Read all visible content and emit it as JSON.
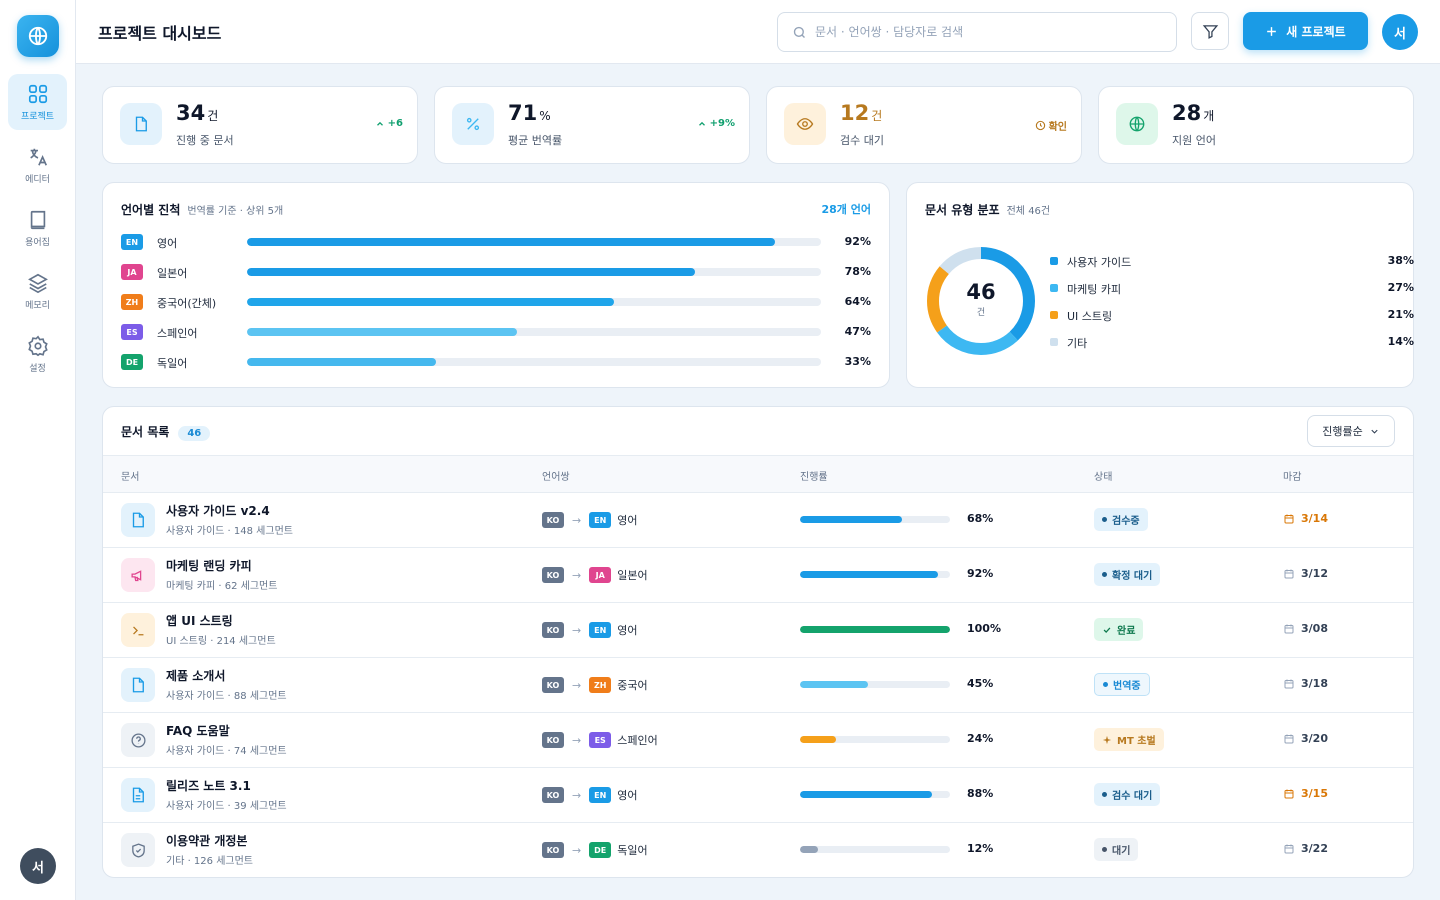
{
  "nav": {
    "items": [
      {
        "label": "프로젝트",
        "icon": "grid-icon"
      },
      {
        "label": "에디터",
        "icon": "translate-icon"
      },
      {
        "label": "용어집",
        "icon": "book-icon"
      },
      {
        "label": "메모리",
        "icon": "layers-icon"
      },
      {
        "label": "설정",
        "icon": "gear-icon"
      }
    ],
    "user_initial": "서"
  },
  "header": {
    "title": "프로젝트 대시보드",
    "search_placeholder": "문서 · 언어쌍 · 담당자로 검색",
    "new_button": "새 프로젝트",
    "user_initial": "서"
  },
  "stats": [
    {
      "value": "34",
      "unit": "건",
      "label": "진행 중 문서",
      "delta": "+6",
      "value_color": "#0f172a",
      "delta_color": "#0f9f6e",
      "icon": "document-icon"
    },
    {
      "value": "71",
      "unit": "%",
      "label": "평균 번역률",
      "delta": "+9%",
      "value_color": "#0f172a",
      "delta_color": "#0f9f6e",
      "icon": "percent-icon"
    },
    {
      "value": "12",
      "unit": "건",
      "label": "검수 대기",
      "delta": "확인",
      "value_color": "#b7791f",
      "delta_color": "#b7791f",
      "icon": "eye-icon"
    },
    {
      "value": "28",
      "unit": "개",
      "label": "지원 언어",
      "delta": "",
      "value_color": "#0f172a",
      "delta_color": "#0f9f6e",
      "icon": "globe-icon"
    }
  ],
  "lang_progress": {
    "title": "언어별 진척",
    "subtitle": "번역률 기준 · 상위 5개",
    "link": "28개 언어",
    "rows": [
      {
        "code": "EN",
        "name": "영어",
        "percent": 92,
        "label": "92%",
        "code_color": "#1a9be6",
        "bar_color": "#1a9be6"
      },
      {
        "code": "JA",
        "name": "일본어",
        "percent": 78,
        "label": "78%",
        "code_color": "#e0458f",
        "bar_color": "#1a9be6"
      },
      {
        "code": "ZH",
        "name": "중국어(간체)",
        "percent": 64,
        "label": "64%",
        "code_color": "#f07d1a",
        "bar_color": "#1fa5ea"
      },
      {
        "code": "ES",
        "name": "스페인어",
        "percent": 47,
        "label": "47%",
        "code_color": "#7c5ce8",
        "bar_color": "#5cc4f2"
      },
      {
        "code": "DE",
        "name": "독일어",
        "percent": 33,
        "label": "33%",
        "code_color": "#14a36c",
        "bar_color": "#45b8ee"
      }
    ]
  },
  "doc_types": {
    "title": "문서 유형 분포",
    "subtitle": "전체 46건",
    "total": "46",
    "total_unit": "건",
    "slices": [
      {
        "name": "사용자 가이드",
        "value": 38,
        "label": "38%",
        "color": "#1a9be6"
      },
      {
        "name": "마케팅 카피",
        "value": 27,
        "label": "27%",
        "color": "#3db8f2"
      },
      {
        "name": "UI 스트링",
        "value": 21,
        "label": "21%",
        "color": "#f5a01a"
      },
      {
        "name": "기타",
        "value": 14,
        "label": "14%",
        "color": "#cfe0ee"
      }
    ]
  },
  "doc_list": {
    "title": "문서 목록",
    "count": "46",
    "sort_label": "진행률순",
    "columns": [
      "문서",
      "언어쌍",
      "진행률",
      "상태",
      "마감"
    ],
    "rows": [
      {
        "title": "사용자 가이드 v2.4",
        "meta": "사용자 가이드 · 148 세그먼트",
        "icon": "document-icon",
        "icon_bg": "#e3f2fc",
        "icon_color": "#1a9be6",
        "src": "KO",
        "tgt": "EN",
        "tgt_color": "#1a9be6",
        "tgt_name": "영어",
        "percent": 68,
        "pct_label": "68%",
        "bar_color": "#1a9be6",
        "status": "검수중",
        "status_icon": "dot",
        "status_bg": "#e3f2fc",
        "status_color": "#1b5e8c",
        "due": "3/14",
        "due_color": "#d97706",
        "due_icon_color": "#d97706"
      },
      {
        "title": "마케팅 랜딩 카피",
        "meta": "마케팅 카피 · 62 세그먼트",
        "icon": "megaphone-icon",
        "icon_bg": "#fde6f0",
        "icon_color": "#e0458f",
        "src": "KO",
        "tgt": "JA",
        "tgt_color": "#e0458f",
        "tgt_name": "일본어",
        "percent": 92,
        "pct_label": "92%",
        "bar_color": "#1a9be6",
        "status": "확정 대기",
        "status_icon": "dot",
        "status_bg": "#e3f2fc",
        "status_color": "#1b5e8c",
        "due": "3/12",
        "due_color": "#334155",
        "due_icon_color": "#94a3b8"
      },
      {
        "title": "앱 UI 스트링",
        "meta": "UI 스트링 · 214 세그먼트",
        "icon": "terminal-icon",
        "icon_bg": "#fef1dc",
        "icon_color": "#b7791f",
        "src": "KO",
        "tgt": "EN",
        "tgt_color": "#1a9be6",
        "tgt_name": "영어",
        "percent": 100,
        "pct_label": "100%",
        "bar_color": "#14a36c",
        "status": "완료",
        "status_icon": "check",
        "status_bg": "#def7ea",
        "status_color": "#0f7a4e",
        "due": "3/08",
        "due_color": "#334155",
        "due_icon_color": "#94a3b8"
      },
      {
        "title": "제품 소개서",
        "meta": "사용자 가이드 · 88 세그먼트",
        "icon": "document-icon",
        "icon_bg": "#e3f2fc",
        "icon_color": "#1a9be6",
        "src": "KO",
        "tgt": "ZH",
        "tgt_color": "#f07d1a",
        "tgt_name": "중국어",
        "percent": 45,
        "pct_label": "45%",
        "bar_color": "#5cc4f2",
        "status": "번역중",
        "status_icon": "dot",
        "status_bg": "#eef7fd",
        "status_color": "#1a8ad4",
        "status_border": "#bfe2f7",
        "due": "3/18",
        "due_color": "#334155",
        "due_icon_color": "#94a3b8"
      },
      {
        "title": "FAQ 도움말",
        "meta": "사용자 가이드 · 74 세그먼트",
        "icon": "help-circle-icon",
        "icon_bg": "#eef2f6",
        "icon_color": "#64748b",
        "src": "KO",
        "tgt": "ES",
        "tgt_color": "#7c5ce8",
        "tgt_name": "스페인어",
        "percent": 24,
        "pct_label": "24%",
        "bar_color": "#f5a01a",
        "status": "MT 초벌",
        "status_icon": "sparkle",
        "status_bg": "#fef1dc",
        "status_color": "#b7791f",
        "due": "3/20",
        "due_color": "#334155",
        "due_icon_color": "#94a3b8"
      },
      {
        "title": "릴리즈 노트 3.1",
        "meta": "사용자 가이드 · 39 세그먼트",
        "icon": "file-text-icon",
        "icon_bg": "#e3f2fc",
        "icon_color": "#1a9be6",
        "src": "KO",
        "tgt": "EN",
        "tgt_color": "#1a9be6",
        "tgt_name": "영어",
        "percent": 88,
        "pct_label": "88%",
        "bar_color": "#1a9be6",
        "status": "검수 대기",
        "status_icon": "dot",
        "status_bg": "#e3f2fc",
        "status_color": "#1b5e8c",
        "due": "3/15",
        "due_color": "#d97706",
        "due_icon_color": "#d97706"
      },
      {
        "title": "이용약관 개정본",
        "meta": "기타 · 126 세그먼트",
        "icon": "shield-check-icon",
        "icon_bg": "#eef2f6",
        "icon_color": "#64748b",
        "src": "KO",
        "tgt": "DE",
        "tgt_color": "#14a36c",
        "tgt_name": "독일어",
        "percent": 12,
        "pct_label": "12%",
        "bar_color": "#94a3b8",
        "status": "대기",
        "status_icon": "dot",
        "status_bg": "#eef2f6",
        "status_color": "#475569",
        "due": "3/22",
        "due_color": "#334155",
        "due_icon_color": "#94a3b8"
      }
    ]
  }
}
